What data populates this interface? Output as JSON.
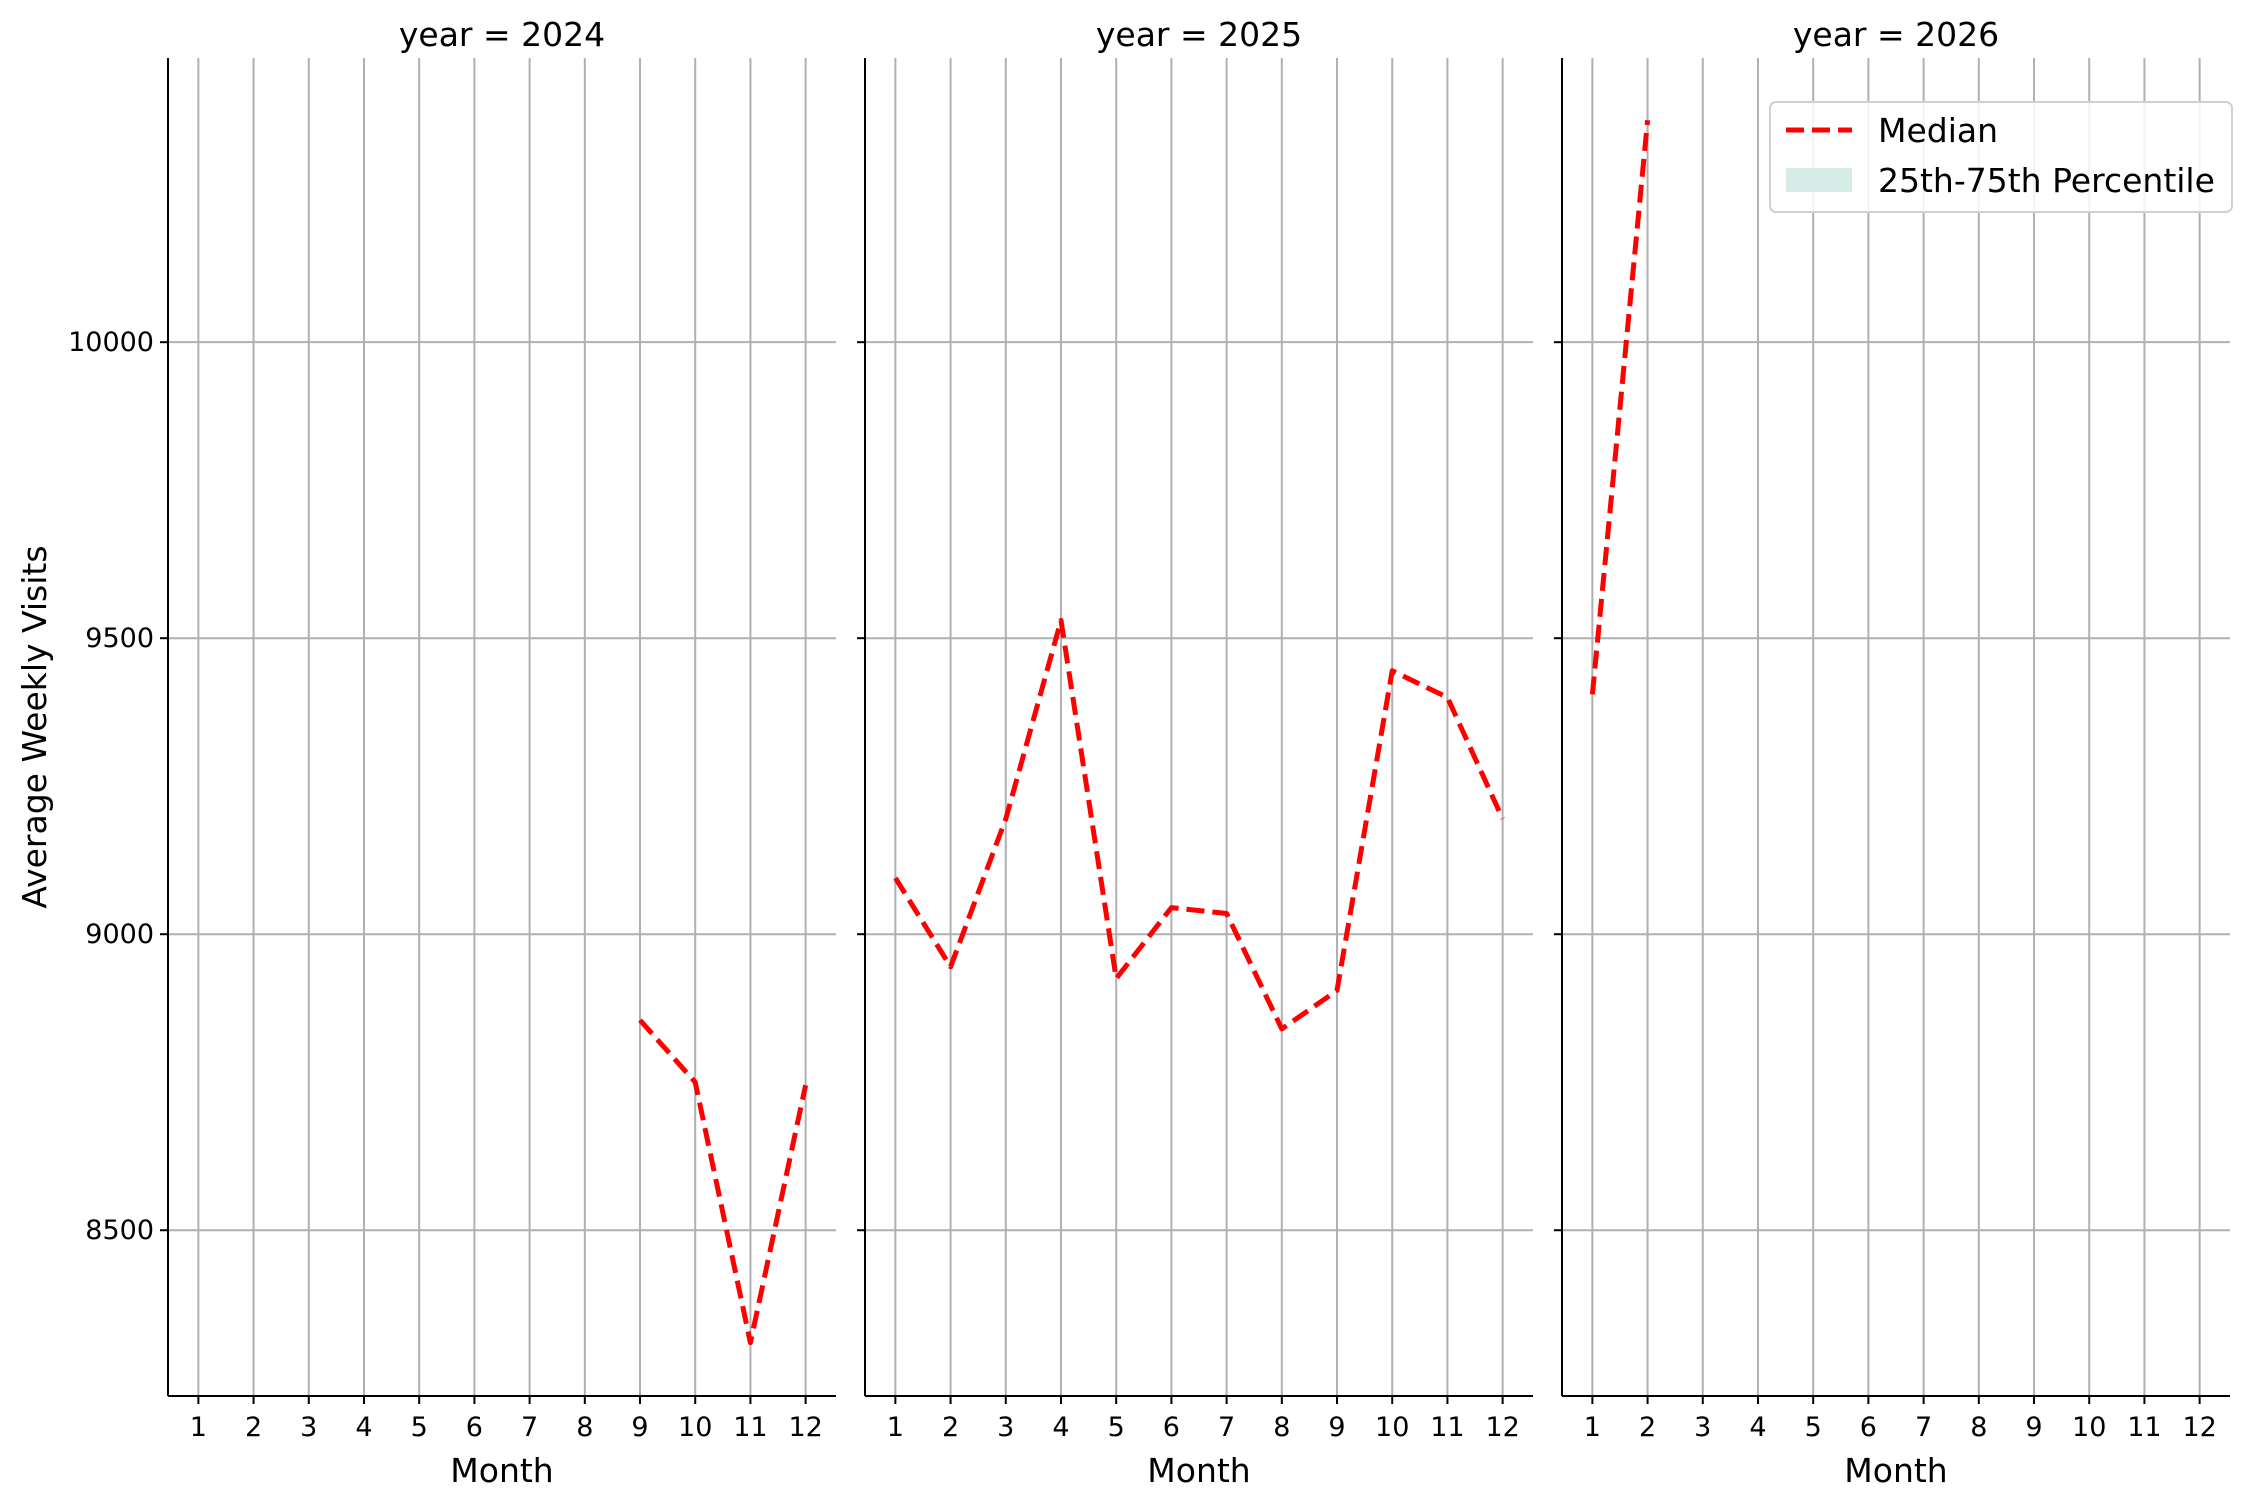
{
  "chart_data": {
    "type": "line",
    "layout": "facet-columns",
    "ylabel": "Average Weekly Visits",
    "xlabel": "Month",
    "x_ticks": [
      "1",
      "2",
      "3",
      "4",
      "5",
      "6",
      "7",
      "8",
      "9",
      "10",
      "11",
      "12"
    ],
    "y_ticks": [
      "8500",
      "9000",
      "9500",
      "10000"
    ],
    "ylim": [
      8220,
      10480
    ],
    "xlim": [
      0.45,
      12.55
    ],
    "grid": true,
    "legend": {
      "placement": "top-right",
      "entries": [
        {
          "label": "Median",
          "style": "dashed-line",
          "color": "#ff0000"
        },
        {
          "label": "25th-75th Percentile",
          "style": "filled-band",
          "color": "#d5ede6"
        }
      ]
    },
    "panels": [
      {
        "title": "year = 2024",
        "series": [
          {
            "name": "Median",
            "x": [
              9,
              10,
              11,
              12
            ],
            "y": [
              8855,
              8750,
              8310,
              8745
            ]
          }
        ]
      },
      {
        "title": "year = 2025",
        "series": [
          {
            "name": "Median",
            "x": [
              1,
              2,
              3,
              4,
              5,
              6,
              7,
              8,
              9,
              10,
              11,
              12
            ],
            "y": [
              9095,
              8945,
              9195,
              9530,
              8925,
              9045,
              9035,
              8840,
              8905,
              9445,
              9400,
              9195
            ]
          }
        ]
      },
      {
        "title": "year = 2026",
        "series": [
          {
            "name": "Median",
            "x": [
              1,
              2
            ],
            "y": [
              9405,
              10375
            ]
          }
        ]
      }
    ]
  },
  "colors": {
    "median_line": "#ff0000",
    "band_fill": "#d5ede6",
    "grid": "#b0b0b0",
    "axis": "#000000"
  }
}
